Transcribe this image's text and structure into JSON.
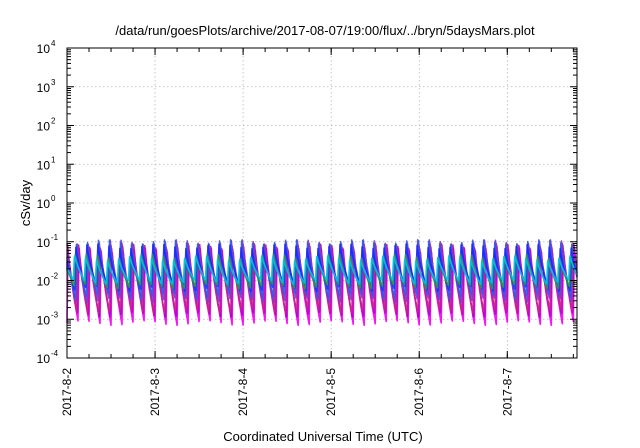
{
  "chart_data": {
    "type": "line",
    "title": "/data/run/goesPlots/archive/2017-08-07/19:00/flux/../bryn/5daysMars.plot",
    "xlabel": "Coordinated Universal Time (UTC)",
    "ylabel": "cSv/day",
    "y_scale": "log",
    "ylim": [
      0.0001,
      10000
    ],
    "y_ticks": [
      {
        "base": "10",
        "exp": "-4",
        "value": 0.0001
      },
      {
        "base": "10",
        "exp": "-3",
        "value": 0.001
      },
      {
        "base": "10",
        "exp": "-2",
        "value": 0.01
      },
      {
        "base": "10",
        "exp": "-1",
        "value": 0.1
      },
      {
        "base": "10",
        "exp": "0",
        "value": 1
      },
      {
        "base": "10",
        "exp": "1",
        "value": 10
      },
      {
        "base": "10",
        "exp": "2",
        "value": 100
      },
      {
        "base": "10",
        "exp": "3",
        "value": 1000
      },
      {
        "base": "10",
        "exp": "4",
        "value": 10000
      }
    ],
    "xlim": [
      "2017-08-02T00:00",
      "2017-08-07T19:00"
    ],
    "x_ticks": [
      "2017-8-2",
      "2017-8-3",
      "2017-8-4",
      "2017-8-5",
      "2017-8-6",
      "2017-8-7"
    ],
    "x_tick_dates": [
      "2017-08-02T00:00",
      "2017-08-03T00:00",
      "2017-08-04T00:00",
      "2017-08-05T00:00",
      "2017-08-06T00:00",
      "2017-08-07T00:00"
    ],
    "grid": true,
    "legend": "none",
    "pattern": "sawtooth",
    "period_hours": 3,
    "series": [
      {
        "color": "#ee00ee",
        "peak": 0.07,
        "trough": 0.0008
      },
      {
        "color": "#aa00cc",
        "peak": 0.09,
        "trough": 0.0012
      },
      {
        "color": "#cc2288",
        "peak": 0.1,
        "trough": 0.0015
      },
      {
        "color": "#7a3acc",
        "peak": 0.11,
        "trough": 0.003
      },
      {
        "color": "#3355ee",
        "peak": 0.1,
        "trough": 0.004
      },
      {
        "color": "#1a28ff",
        "peak": 0.08,
        "trough": 0.006
      },
      {
        "color": "#2a9a4a",
        "peak": 0.045,
        "trough": 0.007
      },
      {
        "color": "#00bfee",
        "peak": 0.04,
        "trough": 0.009
      }
    ]
  }
}
